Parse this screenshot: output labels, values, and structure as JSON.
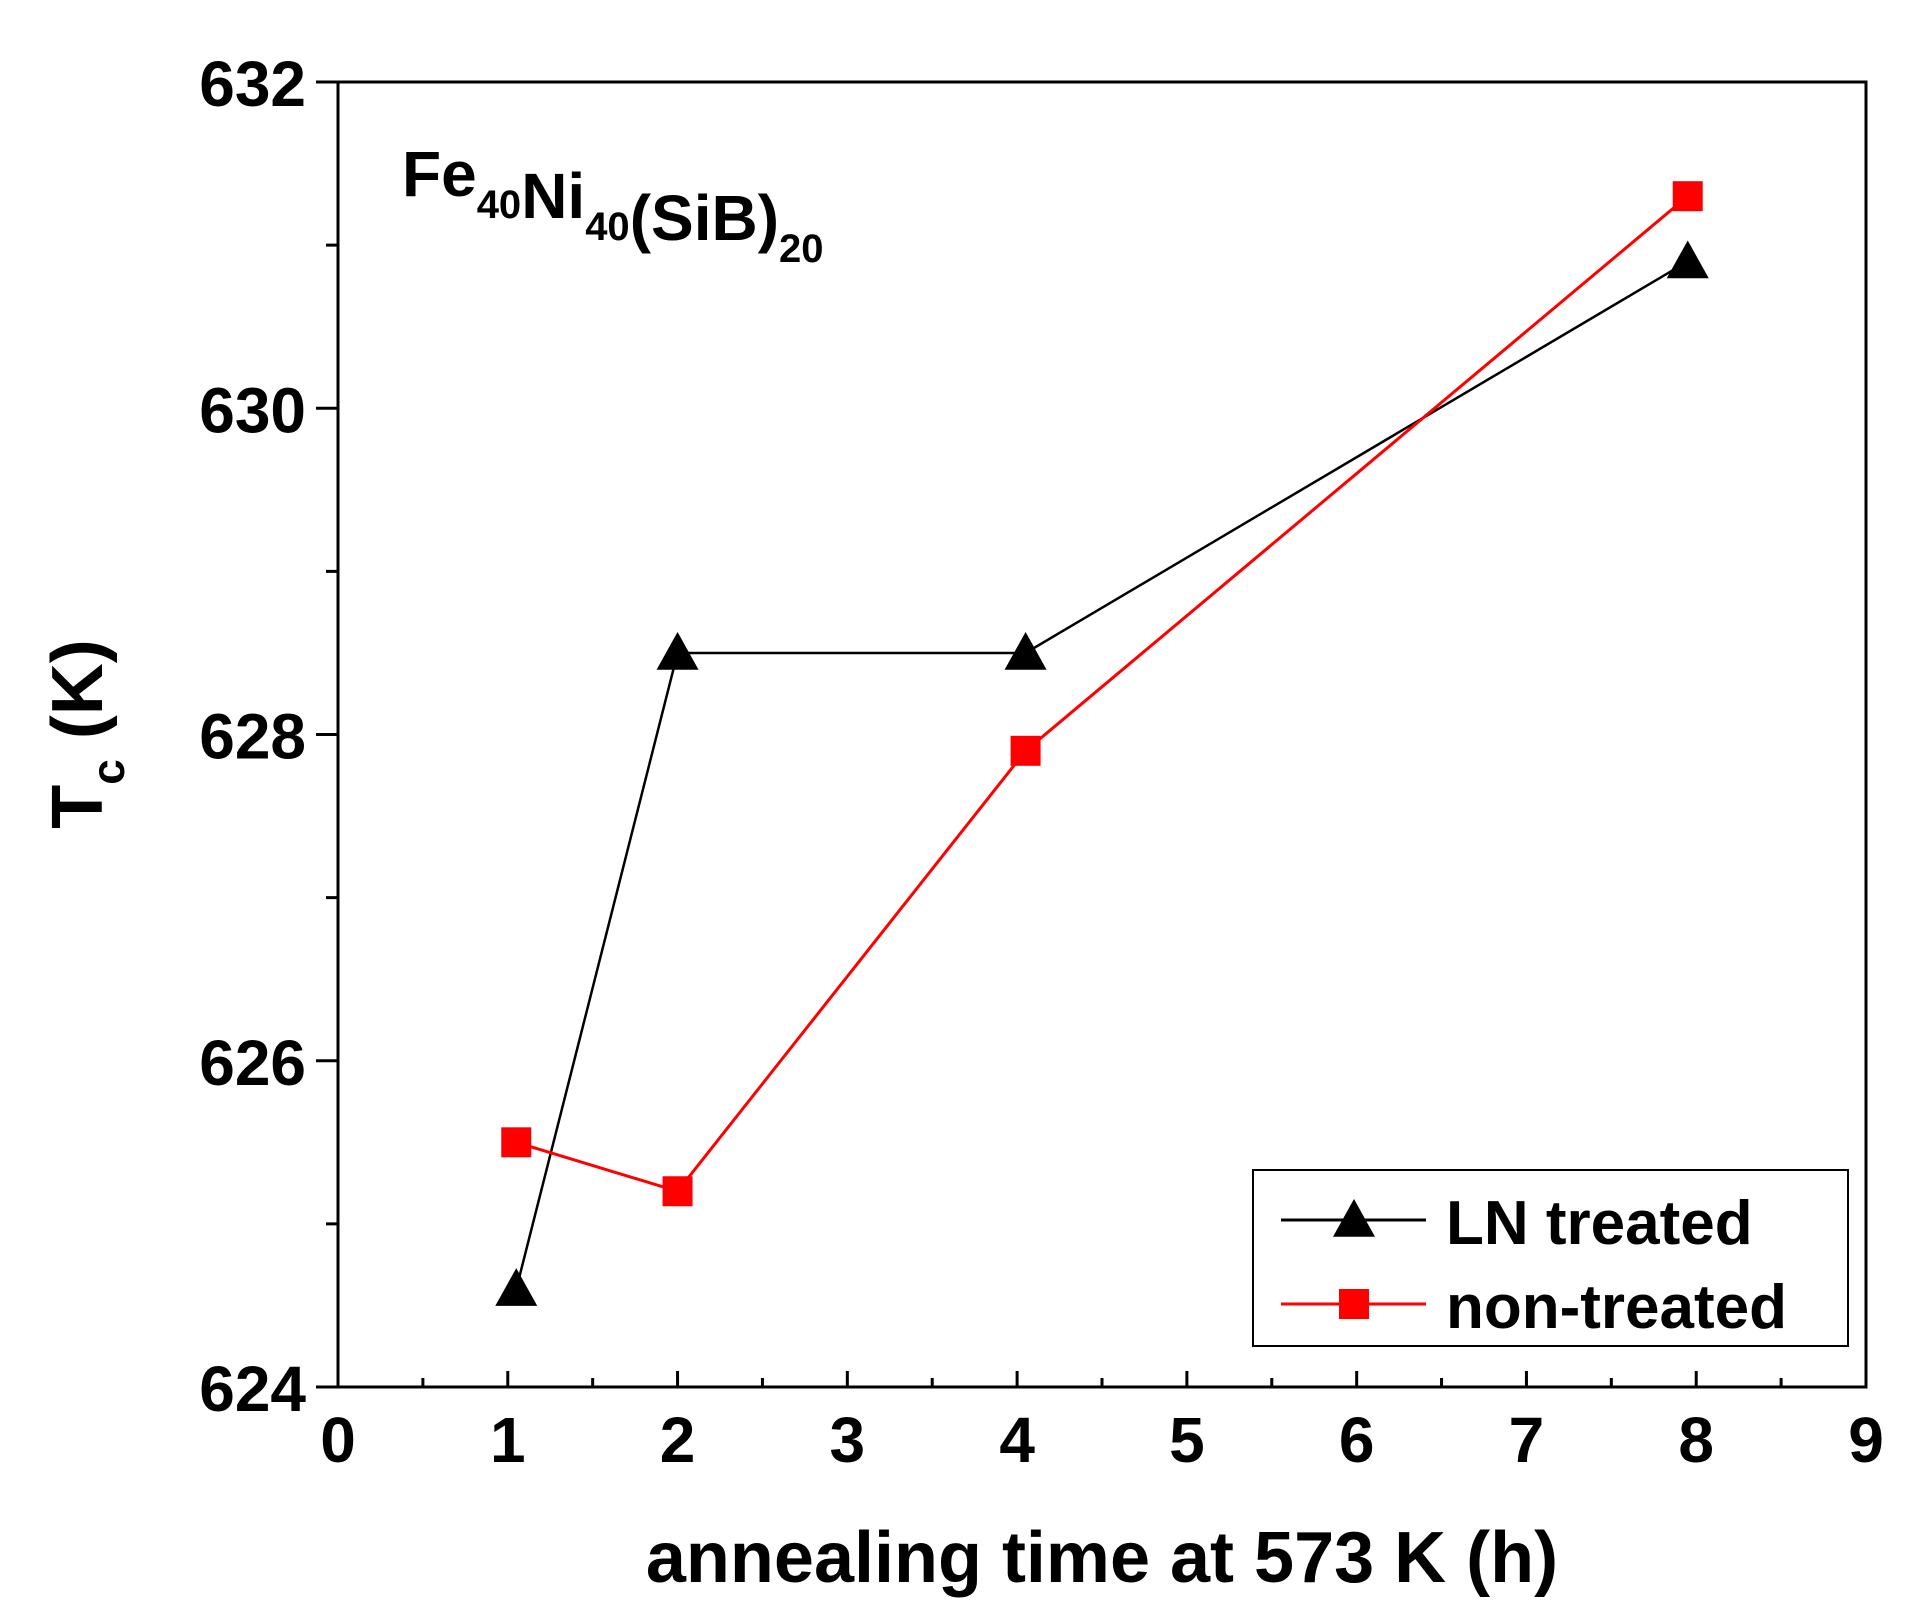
{
  "chart_data": {
    "type": "line",
    "title": "Fe40Ni40(SiB)20",
    "annotation": {
      "parts": [
        {
          "text": "Fe",
          "sub": "40"
        },
        {
          "text": "Ni",
          "sub": "40"
        },
        {
          "text": "(SiB)",
          "sub": "20"
        }
      ]
    },
    "xlabel": "annealing time at 573 K (h)",
    "ylabel": {
      "main": "T",
      "sub": "c",
      "rest": " (K)"
    },
    "xlim": [
      0,
      9
    ],
    "ylim": [
      624,
      632
    ],
    "x_ticks": [
      "0",
      "1",
      "2",
      "3",
      "4",
      "5",
      "6",
      "7",
      "8",
      "9"
    ],
    "y_ticks": [
      "624",
      "626",
      "628",
      "630",
      "632"
    ],
    "legend_position": "bottom-right",
    "series": [
      {
        "name": "LN treated",
        "color": "#000000",
        "marker": "triangle",
        "x": [
          1.05,
          2.0,
          4.05,
          7.95
        ],
        "y": [
          624.6,
          628.5,
          628.5,
          630.9
        ]
      },
      {
        "name": "non-treated",
        "color": "#ff0000",
        "marker": "square",
        "x": [
          1.05,
          2.0,
          4.05,
          7.95
        ],
        "y": [
          625.5,
          625.2,
          627.9,
          631.3
        ]
      }
    ]
  }
}
